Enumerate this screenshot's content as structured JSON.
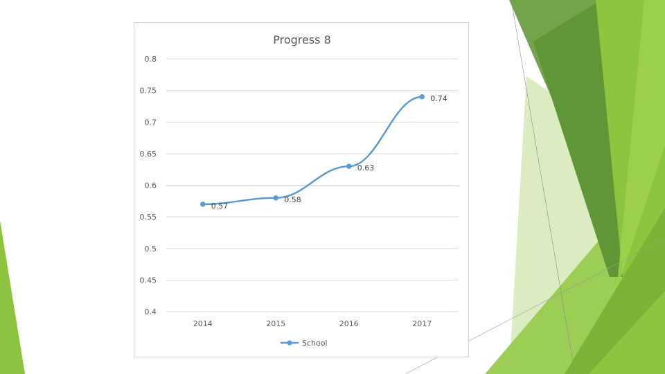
{
  "chart_data": {
    "type": "line",
    "title": "Progress 8",
    "categories": [
      "2014",
      "2015",
      "2016",
      "2017"
    ],
    "series": [
      {
        "name": "School",
        "values": [
          0.57,
          0.58,
          0.63,
          0.74
        ],
        "labels": [
          "0.57",
          "0.58",
          "0.63",
          "0.74"
        ]
      }
    ],
    "yticks": [
      "0.8",
      "0.75",
      "0.7",
      "0.65",
      "0.6",
      "0.55",
      "0.5",
      "0.45",
      "0.4"
    ],
    "ylim": [
      0.4,
      0.8
    ],
    "grid": true,
    "legend_position": "bottom",
    "xlabel": "",
    "ylabel": ""
  },
  "colors": {
    "series": "#5b9bd5",
    "grid": "#d9d9d9",
    "green_dark": "#4e8a2a",
    "green_mid": "#6a9e3c",
    "green_light": "#8cc63f",
    "green_pale": "#c5e09a"
  }
}
